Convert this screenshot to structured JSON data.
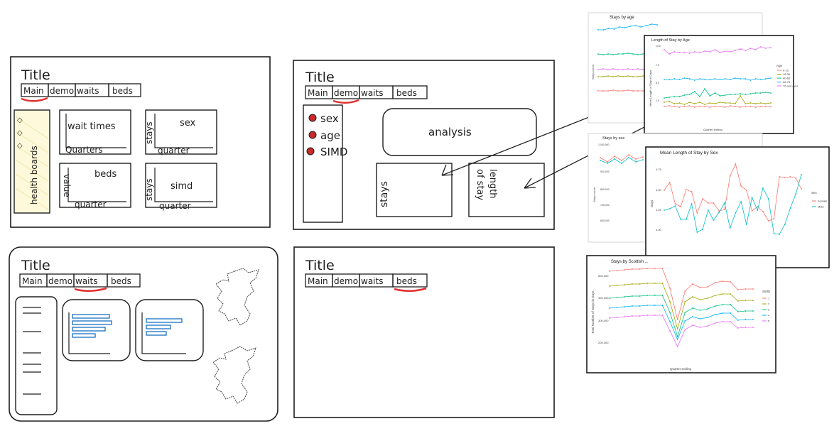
{
  "wire1": {
    "title": "Title",
    "tabs": [
      "Main",
      "demo",
      "waits",
      "beds"
    ],
    "sidebar_label": "health boards",
    "plots": [
      {
        "title": "wait times",
        "x": "Quarters",
        "y": ""
      },
      {
        "title": "sex",
        "x": "quarter",
        "y": "stays"
      },
      {
        "title": "beds",
        "x": "quarter",
        "y": "value"
      },
      {
        "title": "simd",
        "x": "quarter",
        "y": "stays"
      }
    ]
  },
  "wire2": {
    "title": "Title",
    "tabs": [
      "Main",
      "demo",
      "waits",
      "beds"
    ],
    "options": [
      "sex",
      "age",
      "SIMD"
    ],
    "analysis": "analysis",
    "stays": "stays",
    "length_line1": "length",
    "length_line2": "of stay"
  },
  "wire3": {
    "title": "Title",
    "tabs": [
      "Main",
      "demo",
      "waits",
      "beds"
    ]
  },
  "wire4": {
    "title": "Title",
    "tabs": [
      "Main",
      "demo",
      "waits",
      "beds"
    ]
  },
  "charts": {
    "stays_age": {
      "title": "Stays by age",
      "ylabel": "Stays count"
    },
    "los_age": {
      "title": "Length of Stay by Age",
      "ylabel": "Mean Length of Stay in Days",
      "legend_title": "Age",
      "legend": [
        "0-15",
        "16-39",
        "40-65",
        "66-75",
        "76 and over"
      ],
      "colors": [
        "#f8766d",
        "#a3a500",
        "#00bf7d",
        "#00b0f6",
        "#e76bf3"
      ],
      "yticks": [
        "10.0",
        "7.5",
        "5.0",
        "2.5"
      ],
      "xlabel": "Quarter ending"
    },
    "stays_sex": {
      "title": "Stays by sex",
      "ylabel": "Stays count",
      "yticks": [
        "1,000,000",
        "900,000",
        "800,000",
        "700,000",
        "600,000"
      ]
    },
    "los_sex": {
      "title": "Mean Length of Stay by Sex",
      "ylabel": "Days",
      "xlabel": "Quarter ending",
      "legend_title": "Sex",
      "legend": [
        "Female",
        "Male"
      ],
      "colors": [
        "#f8766d",
        "#00bfc4"
      ],
      "yticks": [
        "4.75",
        "4.50",
        "4.25",
        "4.00"
      ]
    },
    "simd": {
      "title": "Stays by Scottish ...",
      "ylabel": "Total Number of Stays in Days",
      "xlabel": "Quarter ending",
      "legend_title": "SIMD",
      "legend": [
        "1",
        "2",
        "3",
        "4",
        "5"
      ],
      "colors": [
        "#f8766d",
        "#a3a500",
        "#00bf7d",
        "#00b0f6",
        "#e76bf3"
      ],
      "yticks": [
        "500,000",
        "400,000",
        "300,000",
        "200,000"
      ]
    }
  }
}
